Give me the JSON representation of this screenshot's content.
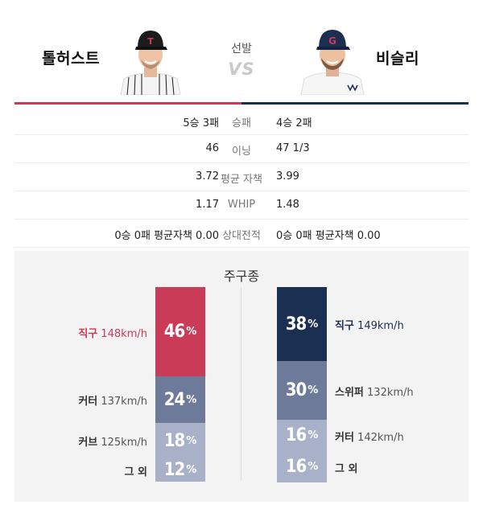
{
  "header": {
    "left_player": "톨허스트",
    "right_player": "비슬리",
    "center_label": "선발",
    "vs": "VS"
  },
  "colors": {
    "left_team": "#c93b57",
    "right_team": "#1b2f52",
    "bar_mid": "#6d7a99",
    "bar_light": "#a8b1c8"
  },
  "stats": [
    {
      "label": "승패",
      "left": "5승 3패",
      "right": "4승 2패"
    },
    {
      "label": "이닝",
      "left": "46",
      "right": "47 1/3"
    },
    {
      "label": "평균 자책",
      "left": "3.72",
      "right": "3.99"
    },
    {
      "label": "WHIP",
      "left": "1.17",
      "right": "1.48"
    },
    {
      "label": "상대전적",
      "left": "0승 0패 평균자책 0.00",
      "right": "0승 0패 평균자책 0.00"
    }
  ],
  "pitch_mix": {
    "title": "주구종",
    "left": [
      {
        "pitch": "직구",
        "speed": "148km/h",
        "pct": 46
      },
      {
        "pitch": "커터",
        "speed": "137km/h",
        "pct": 24
      },
      {
        "pitch": "커브",
        "speed": "125km/h",
        "pct": 18
      },
      {
        "pitch": "그 외",
        "speed": "",
        "pct": 12
      }
    ],
    "right": [
      {
        "pitch": "직구",
        "speed": "149km/h",
        "pct": 38
      },
      {
        "pitch": "스위퍼",
        "speed": "132km/h",
        "pct": 30
      },
      {
        "pitch": "커터",
        "speed": "142km/h",
        "pct": 16
      },
      {
        "pitch": "그 외",
        "speed": "",
        "pct": 16
      }
    ],
    "pct_sign": "%"
  }
}
